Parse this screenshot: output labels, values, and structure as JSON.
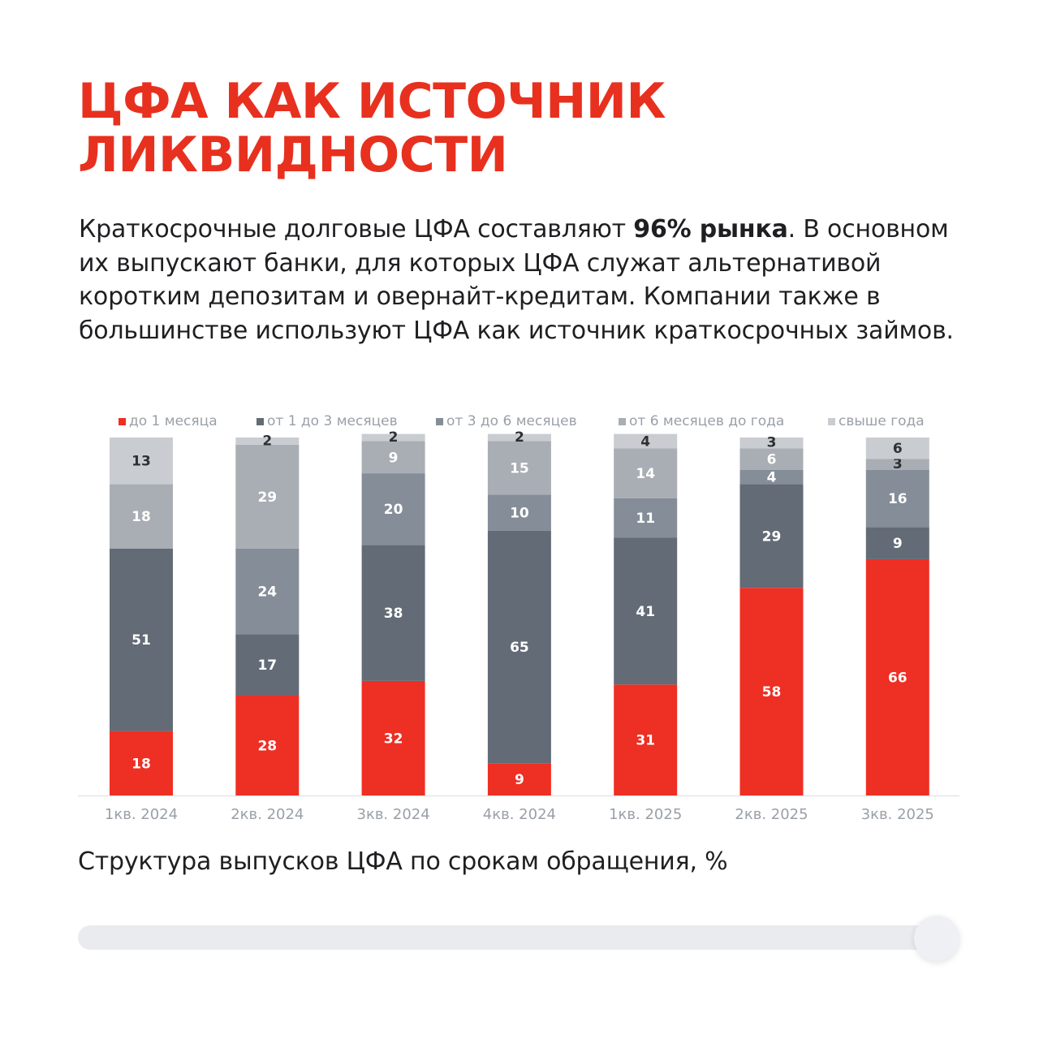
{
  "title": {
    "line1": "ЦФА КАК ИСТОЧНИК",
    "line2": "ЛИКВИДНОСТИ"
  },
  "intro": {
    "part1": "Краткосрочные долговые ЦФА составляют ",
    "bold": "96% рынка",
    "part2": ". В основном их выпускают банки, для которых ЦФА служат альтернативой коротким депозитам и овернайт-кредитам. Компании также в большинстве используют ЦФА как источник краткосрочных займов."
  },
  "caption": "Структура выпусков ЦФА по срокам обращения, %",
  "colors": {
    "red": "#ee2f24",
    "dark": "#636b76",
    "mid": "#858d98",
    "light": "#a9adb4",
    "lightest": "#c9ccd0",
    "legend_text": "#9aa0a8",
    "axis_text": "#9aa0a8"
  },
  "chart_data": {
    "type": "bar",
    "stacked": true,
    "ylim": [
      0,
      100
    ],
    "title": "Структура выпусков ЦФА по срокам обращения, %",
    "legend_position": "top",
    "categories": [
      "1кв. 2024",
      "2кв. 2024",
      "3кв. 2024",
      "4кв. 2024",
      "1кв. 2025",
      "2кв. 2025",
      "3кв. 2025"
    ],
    "series": [
      {
        "name": "до 1 месяца",
        "color": "#ee2f24",
        "label_color": "#ffffff",
        "values": [
          18,
          28,
          32,
          9,
          31,
          58,
          66
        ]
      },
      {
        "name": "от 1 до 3 месяцев",
        "color": "#636b76",
        "label_color": "#ffffff",
        "values": [
          51,
          17,
          38,
          65,
          41,
          29,
          9
        ]
      },
      {
        "name": "от 3 до 6 месяцев",
        "color": "#858d98",
        "label_color": "#ffffff",
        "values": [
          0,
          24,
          20,
          10,
          11,
          4,
          16
        ]
      },
      {
        "name": "от 6 месяцев до года",
        "color": "#a9adb4",
        "label_color": "#ffffff",
        "values": [
          18,
          29,
          9,
          15,
          14,
          6,
          3
        ]
      },
      {
        "name": "свыше года",
        "color": "#c9ccd0",
        "label_color": "#2e3033",
        "values": [
          13,
          2,
          2,
          2,
          4,
          3,
          6
        ]
      }
    ]
  }
}
